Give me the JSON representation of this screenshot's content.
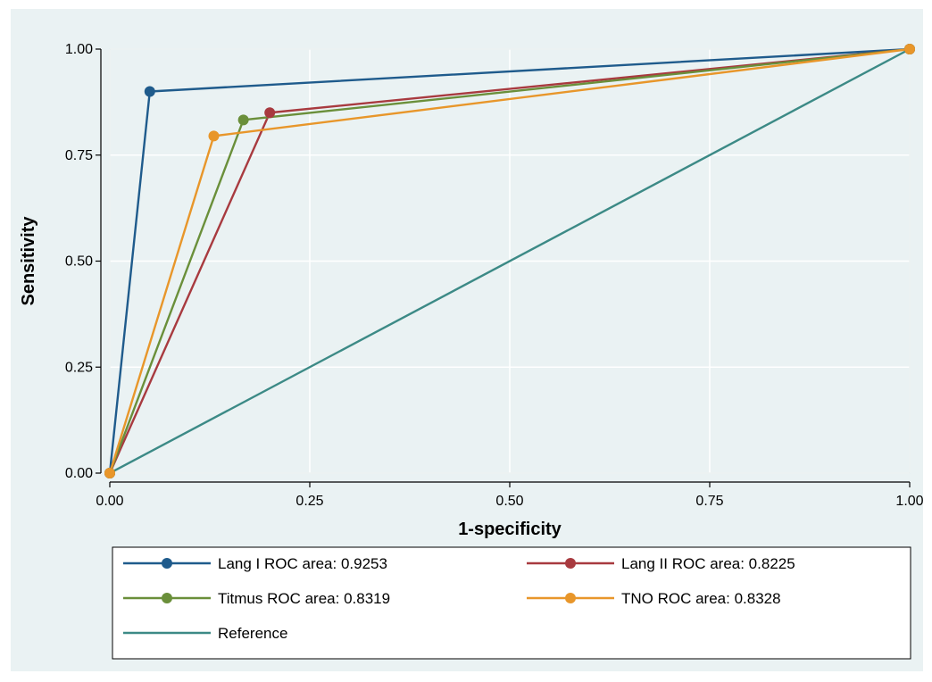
{
  "chart_data": {
    "type": "line",
    "title": "",
    "xlabel": "1-specificity",
    "ylabel": "Sensitivity",
    "xlim": [
      0,
      1
    ],
    "ylim": [
      0,
      1
    ],
    "xticks": [
      "0.00",
      "0.25",
      "0.50",
      "0.75",
      "1.00"
    ],
    "yticks": [
      "0.00",
      "0.25",
      "0.50",
      "0.75",
      "1.00"
    ],
    "xtick_values": [
      0,
      0.25,
      0.5,
      0.75,
      1
    ],
    "ytick_values": [
      0,
      0.25,
      0.5,
      0.75,
      1
    ],
    "grid": true,
    "legend_position": "bottom",
    "series": [
      {
        "name": "Lang I ROC area: 0.9253",
        "color": "#1f5b8c",
        "markers": true,
        "x": [
          0,
          0.05,
          1
        ],
        "y": [
          0,
          0.9,
          1
        ]
      },
      {
        "name": "Lang II ROC area: 0.8225",
        "color": "#a83a3f",
        "markers": true,
        "x": [
          0,
          0.2,
          1
        ],
        "y": [
          0,
          0.85,
          1
        ]
      },
      {
        "name": "Titmus ROC area: 0.8319",
        "color": "#6a8f3a",
        "markers": true,
        "x": [
          0,
          0.167,
          1
        ],
        "y": [
          0,
          0.833,
          1
        ]
      },
      {
        "name": "TNO ROC area: 0.8328",
        "color": "#e8962a",
        "markers": true,
        "x": [
          0,
          0.13,
          1
        ],
        "y": [
          0,
          0.795,
          1
        ]
      },
      {
        "name": "Reference",
        "color": "#3c8a86",
        "markers": false,
        "x": [
          0,
          1
        ],
        "y": [
          0,
          1
        ]
      }
    ]
  }
}
